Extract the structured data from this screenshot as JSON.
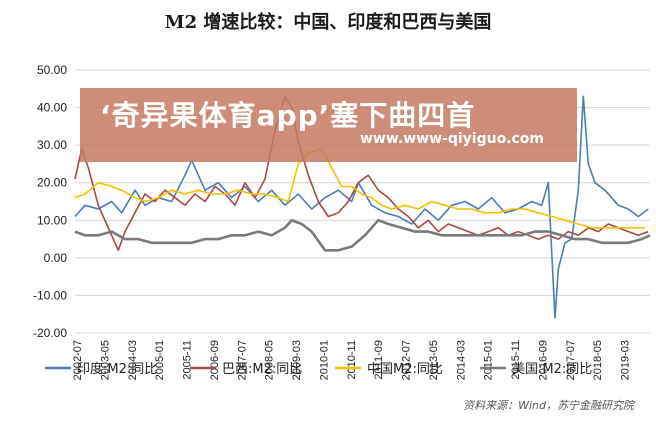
{
  "title": "M2 增速比较：中国、印度和巴西与美国",
  "watermark": {
    "main": "‘奇异果体育app’塞下曲四首",
    "url": "www.www-qiyiguo.com"
  },
  "source": "资料来源：Wind，苏宁金融研究院",
  "chart_data": {
    "type": "line",
    "ylim": [
      -20,
      50
    ],
    "yticks": [
      "50.00",
      "40.00",
      "30.00",
      "20.00",
      "10.00",
      "0.00",
      "-10.00",
      "-20.00"
    ],
    "xlim": [
      2002.5,
      2019.75
    ],
    "xtick_labels": [
      "2002-07",
      "2003-05",
      "2004-03",
      "2005-01",
      "2005-11",
      "2006-09",
      "2007-07",
      "2008-05",
      "2009-03",
      "2010-01",
      "2010-11",
      "2011-09",
      "2012-07",
      "2013-05",
      "2014-03",
      "2015-01",
      "2015-11",
      "2016-09",
      "2017-07",
      "2018-05",
      "2019-03"
    ],
    "grid": "horizontal",
    "legend_position": "bottom",
    "series": [
      {
        "name": "印度:M2:同比",
        "color": "#4a7eb5",
        "x": [
          2002.5,
          2002.8,
          2003.2,
          2003.6,
          2003.9,
          2004.3,
          2004.6,
          2005.0,
          2005.4,
          2005.8,
          2006.0,
          2006.4,
          2006.8,
          2007.2,
          2007.6,
          2008.0,
          2008.4,
          2008.8,
          2009.2,
          2009.6,
          2010.0,
          2010.4,
          2010.8,
          2011.0,
          2011.4,
          2011.8,
          2012.2,
          2012.6,
          2013.0,
          2013.4,
          2013.8,
          2014.2,
          2014.6,
          2015.0,
          2015.4,
          2015.8,
          2016.2,
          2016.5,
          2016.7,
          2016.9,
          2017.0,
          2017.2,
          2017.4,
          2017.6,
          2017.75,
          2017.9,
          2018.1,
          2018.4,
          2018.8,
          2019.1,
          2019.4,
          2019.7
        ],
        "values": [
          11,
          14,
          13,
          15,
          12,
          18,
          14,
          16,
          15,
          22,
          26,
          18,
          20,
          16,
          19,
          15,
          18,
          14,
          17,
          13,
          16,
          18,
          15,
          20,
          14,
          12,
          11,
          9,
          13,
          10,
          14,
          15,
          13,
          16,
          12,
          13,
          15,
          14,
          20,
          -16,
          -3,
          4,
          5,
          18,
          43,
          25,
          20,
          18,
          14,
          13,
          11,
          13
        ]
      },
      {
        "name": "巴西:M2:同比",
        "color": "#a84a4a",
        "x": [
          2002.5,
          2002.7,
          2002.9,
          2003.2,
          2003.5,
          2003.8,
          2004.0,
          2004.3,
          2004.6,
          2004.9,
          2005.2,
          2005.5,
          2005.8,
          2006.1,
          2006.4,
          2006.7,
          2007.0,
          2007.3,
          2007.6,
          2007.9,
          2008.2,
          2008.5,
          2008.8,
          2009.0,
          2009.2,
          2009.5,
          2009.8,
          2010.1,
          2010.4,
          2010.7,
          2011.0,
          2011.3,
          2011.6,
          2011.9,
          2012.2,
          2012.5,
          2012.8,
          2013.1,
          2013.4,
          2013.7,
          2014.0,
          2014.3,
          2014.6,
          2014.9,
          2015.2,
          2015.5,
          2015.8,
          2016.1,
          2016.4,
          2016.7,
          2017.0,
          2017.3,
          2017.6,
          2017.9,
          2018.2,
          2018.5,
          2018.8,
          2019.1,
          2019.4,
          2019.7
        ],
        "values": [
          21,
          29,
          24,
          14,
          8,
          2,
          7,
          12,
          17,
          15,
          18,
          16,
          14,
          17,
          15,
          19,
          17,
          14,
          20,
          16,
          21,
          34,
          43,
          40,
          31,
          22,
          15,
          11,
          12,
          15,
          20,
          22,
          18,
          16,
          13,
          11,
          8,
          10,
          7,
          9,
          8,
          7,
          6,
          7,
          8,
          6,
          7,
          6,
          5,
          6,
          5,
          7,
          6,
          8,
          7,
          9,
          8,
          7,
          6,
          7
        ]
      },
      {
        "name": "中国M2:同比",
        "color": "#f2c200",
        "x": [
          2002.5,
          2002.8,
          2003.2,
          2003.6,
          2003.9,
          2004.3,
          2004.6,
          2005.0,
          2005.4,
          2005.8,
          2006.2,
          2006.6,
          2007.0,
          2007.4,
          2007.8,
          2008.2,
          2008.6,
          2008.9,
          2009.2,
          2009.5,
          2009.9,
          2010.2,
          2010.5,
          2010.8,
          2011.1,
          2011.4,
          2011.7,
          2012.0,
          2012.4,
          2012.8,
          2013.2,
          2013.6,
          2014.0,
          2014.4,
          2014.8,
          2015.2,
          2015.6,
          2016.0,
          2016.4,
          2016.8,
          2017.2,
          2017.6,
          2018.0,
          2018.4,
          2018.8,
          2019.2,
          2019.6
        ],
        "values": [
          16,
          17,
          20,
          19,
          18,
          16,
          15,
          16,
          18,
          17,
          18,
          17,
          17,
          18,
          17,
          17,
          16,
          15,
          25,
          28,
          29,
          24,
          19,
          19,
          17,
          16,
          14,
          13,
          14,
          13,
          15,
          14,
          13,
          13,
          12,
          12,
          13,
          13,
          12,
          11,
          10,
          9,
          8,
          8,
          8,
          8,
          8
        ]
      },
      {
        "name": "美国:M2:同比",
        "color": "#7a7a7a",
        "x": [
          2002.5,
          2002.8,
          2003.2,
          2003.6,
          2004.0,
          2004.4,
          2004.8,
          2005.2,
          2005.6,
          2006.0,
          2006.4,
          2006.8,
          2007.2,
          2007.6,
          2008.0,
          2008.4,
          2008.8,
          2009.0,
          2009.3,
          2009.6,
          2010.0,
          2010.4,
          2010.8,
          2011.2,
          2011.6,
          2011.9,
          2012.3,
          2012.7,
          2013.1,
          2013.5,
          2013.9,
          2014.3,
          2014.7,
          2015.1,
          2015.5,
          2015.9,
          2016.3,
          2016.7,
          2017.1,
          2017.5,
          2017.9,
          2018.3,
          2018.7,
          2019.1,
          2019.5,
          2019.75
        ],
        "values": [
          7,
          6,
          6,
          7,
          5,
          5,
          4,
          4,
          4,
          4,
          5,
          5,
          6,
          6,
          7,
          6,
          8,
          10,
          9,
          7,
          2,
          2,
          3,
          6,
          10,
          9,
          8,
          7,
          7,
          6,
          6,
          6,
          6,
          6,
          6,
          6,
          7,
          7,
          6,
          5,
          5,
          4,
          4,
          4,
          5,
          6
        ]
      }
    ]
  }
}
